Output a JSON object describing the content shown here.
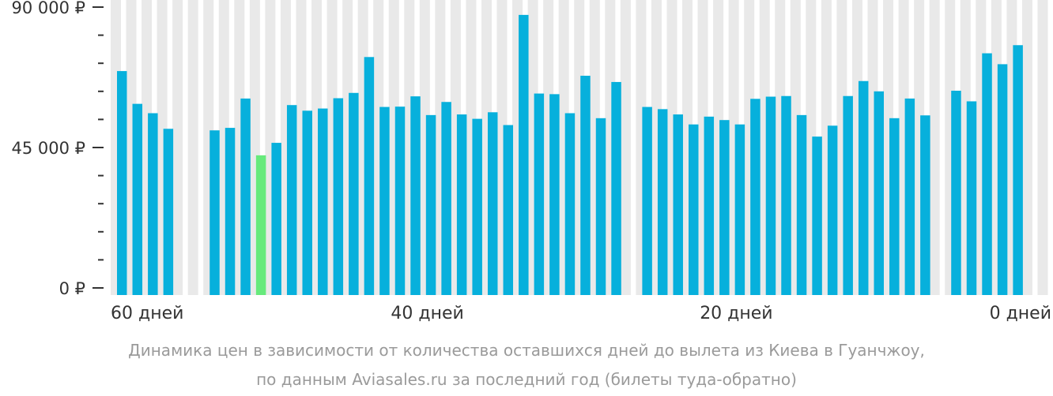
{
  "chart_data": {
    "type": "bar",
    "title": "",
    "xlabel": "",
    "ylabel": "",
    "ylim": [
      0,
      90000
    ],
    "y_ticks": [
      {
        "value": 0,
        "label": "0 ₽"
      },
      {
        "value": 45000,
        "label": "45 000 ₽"
      },
      {
        "value": 90000,
        "label": "90 000 ₽"
      }
    ],
    "x_tick_labels": [
      {
        "days": 60,
        "label": "60 дней"
      },
      {
        "days": 40,
        "label": "40 дней"
      },
      {
        "days": 20,
        "label": "20 дней"
      },
      {
        "days": 0,
        "label": "0 дней"
      }
    ],
    "x_axis": "days_before_departure",
    "days": [
      60,
      59,
      58,
      57,
      56,
      55,
      54,
      53,
      52,
      51,
      50,
      49,
      48,
      47,
      46,
      45,
      44,
      43,
      42,
      41,
      40,
      39,
      38,
      37,
      36,
      35,
      34,
      33,
      32,
      31,
      30,
      29,
      28,
      27,
      26,
      25,
      24,
      23,
      22,
      21,
      20,
      19,
      18,
      17,
      16,
      15,
      14,
      13,
      12,
      11,
      10,
      9,
      8,
      7,
      6,
      5,
      4,
      3,
      2,
      1,
      0
    ],
    "values": [
      69500,
      59000,
      56000,
      51000,
      null,
      null,
      50500,
      51300,
      60700,
      42500,
      46500,
      58600,
      56800,
      57500,
      60800,
      62500,
      74000,
      58000,
      58100,
      61400,
      55400,
      59600,
      55600,
      54200,
      56300,
      52200,
      87500,
      62300,
      62100,
      56000,
      68000,
      54400,
      66000,
      null,
      58000,
      57300,
      55600,
      52400,
      54900,
      53800,
      52400,
      60600,
      61300,
      61500,
      55400,
      48500,
      52000,
      61500,
      66300,
      63000,
      54400,
      60700,
      55300,
      null,
      63200,
      59800,
      75200,
      71700,
      77800,
      null,
      null
    ],
    "min_index": 9,
    "colors": {
      "bar": "#07b0dc",
      "min_bar": "#67ea7c",
      "column_bg": "#e9e9e9",
      "axis": "#333333"
    },
    "grid": false,
    "legend": "none"
  },
  "caption": {
    "line1": "Динамика цен в зависимости от количества оставшихся дней до вылета из Киева в Гуанчжоу,",
    "line2": "по данным Aviasales.ru за последний год (билеты туда-обратно)"
  }
}
